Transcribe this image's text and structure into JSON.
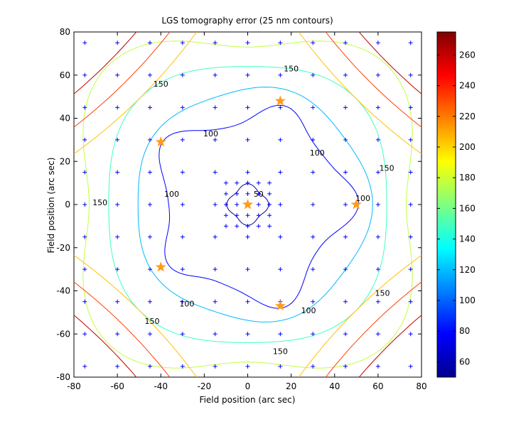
{
  "chart_data": {
    "type": "contour",
    "title": "LGS tomography error (25 nm contours)",
    "xlabel": "Field position (arc sec)",
    "ylabel": "Field position (arc sec)",
    "xlim": [
      -80,
      80
    ],
    "ylim": [
      -80,
      80
    ],
    "xticks": [
      -80,
      -60,
      -40,
      -20,
      0,
      20,
      40,
      60,
      80
    ],
    "yticks": [
      -80,
      -60,
      -40,
      -20,
      0,
      20,
      40,
      60,
      80
    ],
    "colorbar": {
      "range": [
        50,
        275
      ],
      "ticks": [
        60,
        80,
        100,
        120,
        140,
        160,
        180,
        200,
        220,
        240,
        260
      ],
      "colormap": "jet"
    },
    "contour_levels": [
      50,
      100,
      150,
      175,
      200,
      225,
      250
    ],
    "contour_labels": [
      {
        "text": "50",
        "x": 5,
        "y": 5
      },
      {
        "text": "100",
        "x": -17,
        "y": 33
      },
      {
        "text": "100",
        "x": 32,
        "y": 24
      },
      {
        "text": "100",
        "x": 53,
        "y": 3
      },
      {
        "text": "100",
        "x": -35,
        "y": 5
      },
      {
        "text": "100",
        "x": -28,
        "y": -46
      },
      {
        "text": "100",
        "x": 28,
        "y": -49
      },
      {
        "text": "150",
        "x": 20,
        "y": 63
      },
      {
        "text": "150",
        "x": -40,
        "y": 56
      },
      {
        "text": "150",
        "x": 64,
        "y": 17
      },
      {
        "text": "150",
        "x": -68,
        "y": 1
      },
      {
        "text": "150",
        "x": 62,
        "y": -41
      },
      {
        "text": "150",
        "x": -44,
        "y": -54
      },
      {
        "text": "150",
        "x": 15,
        "y": -68
      }
    ],
    "guide_stars": [
      {
        "x": 0,
        "y": 0
      },
      {
        "x": 15,
        "y": 48
      },
      {
        "x": -40,
        "y": 29
      },
      {
        "x": 50,
        "y": 0
      },
      {
        "x": -40,
        "y": -29
      },
      {
        "x": 15,
        "y": -47
      }
    ],
    "sample_grid": {
      "coarse": [
        -75,
        -60,
        -45,
        -30,
        -15,
        0,
        15,
        30,
        45,
        60,
        75
      ],
      "fine": [
        -10,
        -5,
        0,
        5,
        10
      ]
    }
  },
  "colors": {
    "contour_50": "#0000a8",
    "contour_100": "#0000ff",
    "contour_125": "#00b8ff",
    "contour_150": "#40ffc0",
    "contour_175": "#c0ff40",
    "contour_200": "#ffc000",
    "contour_225": "#ff4000",
    "contour_250": "#c00000",
    "grid_marker": "#0000ff",
    "star": "#ff9b1c"
  }
}
